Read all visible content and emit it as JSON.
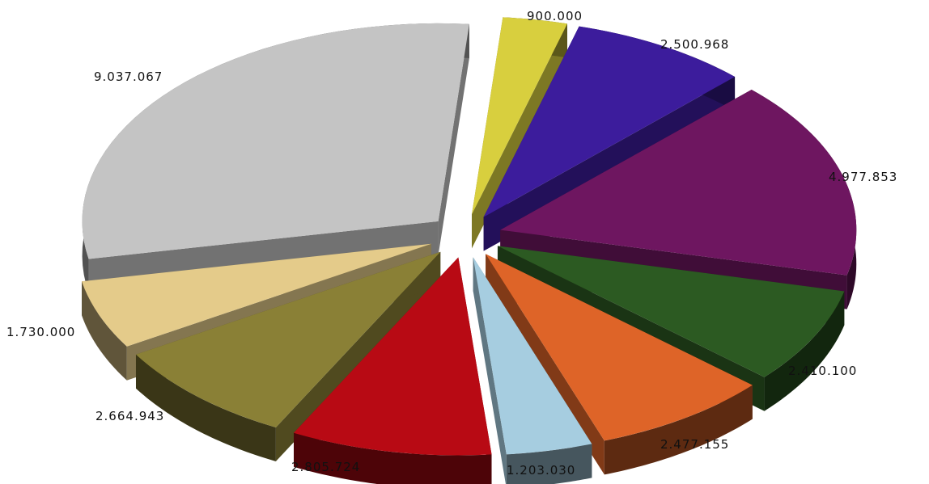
{
  "chart_data": {
    "type": "pie",
    "style": "3d-exploded",
    "title": "",
    "legend": "none",
    "slices": [
      {
        "label": "900.000",
        "value": 900000,
        "color": "#d8cf3e"
      },
      {
        "label": "2.500.968",
        "value": 2500968,
        "color": "#3c1c9c"
      },
      {
        "label": "4.977.853",
        "value": 4977853,
        "color": "#6e1660"
      },
      {
        "label": "2.410.100",
        "value": 2410100,
        "color": "#2c5a22"
      },
      {
        "label": "2.477.155",
        "value": 2477155,
        "color": "#de6428"
      },
      {
        "label": "1.203.030",
        "value": 1203030,
        "color": "#a6cde0"
      },
      {
        "label": "2.805.724",
        "value": 2805724,
        "color": "#b80a14"
      },
      {
        "label": "2.664.943",
        "value": 2664943,
        "color": "#8a8036"
      },
      {
        "label": "1.730.000",
        "value": 1730000,
        "color": "#e4cb8a"
      },
      {
        "label": "9.037.067",
        "value": 9037067,
        "color": "#c4c4c4"
      }
    ]
  }
}
